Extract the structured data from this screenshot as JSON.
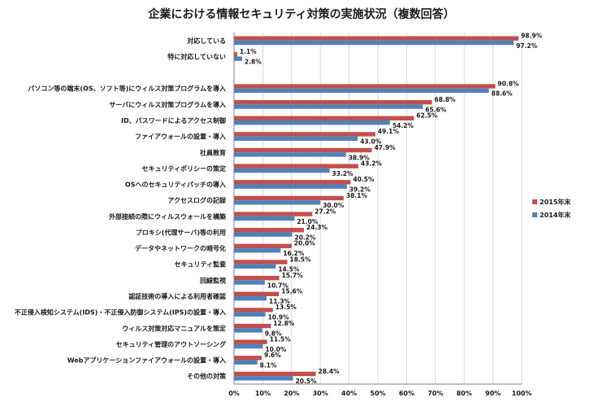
{
  "chart_data": {
    "type": "bar",
    "orientation": "horizontal",
    "title": "企業における情報セキュリティ対策の実施状況（複数回答）",
    "xlim": [
      0,
      100
    ],
    "x_ticks": [
      "0%",
      "10%",
      "20%",
      "30%",
      "40%",
      "50%",
      "60%",
      "70%",
      "80%",
      "90%",
      "100%"
    ],
    "grid": true,
    "legend_position": "right",
    "categories": [
      "対応している",
      "特に対応していない",
      "",
      "パソコン等の端末(OS、ソフト等)にウィルス対策プログラムを導入",
      "サーバにウィルス対策プログラムを導入",
      "ID、パスワードによるアクセス制御",
      "ファイアウォールの設置・導入",
      "社員教育",
      "セキュリティポリシーの策定",
      "OSへのセキュリティパッチの導入",
      "アクセスログの記録",
      "外部接続の際にウィルスウォールを構築",
      "プロキシ(代理サーバ)等の利用",
      "データやネットワークの暗号化",
      "セキュリティ監査",
      "回線監視",
      "認証技術の導入による利用者確認",
      "不正侵入検知システム(IDS)・不正侵入防御システム(IPS)の設置・導入",
      "ウィルス対策対応マニュアルを策定",
      "セキュリティ管理のアウトソーシング",
      "Webアプリケーションファイアウォールの設置・導入",
      "その他の対策"
    ],
    "series": [
      {
        "name": "2015年末",
        "color": "#c0504d",
        "values": [
          98.9,
          1.1,
          null,
          90.8,
          68.8,
          62.5,
          49.1,
          47.9,
          43.2,
          40.5,
          38.1,
          27.2,
          24.3,
          20.0,
          18.5,
          15.7,
          15.6,
          13.5,
          12.8,
          11.5,
          9.6,
          28.4
        ],
        "labels": [
          "98.9%",
          "1.1%",
          "",
          "90.8%",
          "68.8%",
          "62.5%",
          "49.1%",
          "47.9%",
          "43.2%",
          "40.5%",
          "38.1%",
          "27.2%",
          "24.3%",
          "20.0%",
          "18.5%",
          "15.7%",
          "15.6%",
          "13.5%",
          "12.8%",
          "11.5%",
          "9.6%",
          "28.4%"
        ]
      },
      {
        "name": "2014年末",
        "color": "#4f81bd",
        "values": [
          97.2,
          2.8,
          null,
          88.6,
          65.6,
          54.2,
          43.0,
          38.9,
          33.2,
          39.2,
          30.0,
          21.0,
          20.2,
          16.2,
          14.5,
          10.7,
          11.3,
          10.9,
          9.8,
          10.0,
          8.1,
          20.5
        ],
        "labels": [
          "97.2%",
          "2.8%",
          "",
          "88.6%",
          "65.6%",
          "54.2%",
          "43.0%",
          "38.9%",
          "33.2%",
          "39.2%",
          "30.0%",
          "21.0%",
          "20.2%",
          "16.2%",
          "14.5%",
          "10.7%",
          "11.3%",
          "10.9%",
          "9.8%",
          "10.0%",
          "8.1%",
          "20.5%"
        ]
      }
    ]
  }
}
